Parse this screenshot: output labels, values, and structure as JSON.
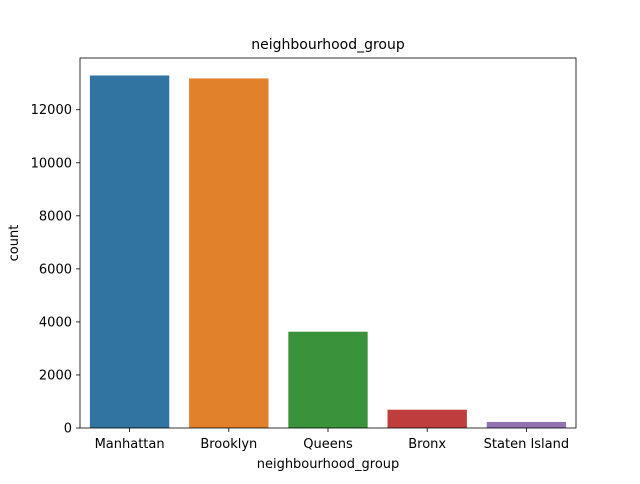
{
  "chart_data": {
    "type": "bar",
    "title": "neighbourhood_group",
    "xlabel": "neighbourhood_group",
    "ylabel": "count",
    "categories": [
      "Manhattan",
      "Brooklyn",
      "Queens",
      "Bronx",
      "Staten Island"
    ],
    "values": [
      13290,
      13180,
      3630,
      690,
      230
    ],
    "colors": [
      "#3274a1",
      "#e1812c",
      "#3a923a",
      "#c03d3e",
      "#9372b2"
    ],
    "ylim": [
      0,
      13950
    ],
    "yticks": [
      0,
      2000,
      4000,
      6000,
      8000,
      10000,
      12000
    ],
    "grid": false,
    "legend": "none"
  }
}
